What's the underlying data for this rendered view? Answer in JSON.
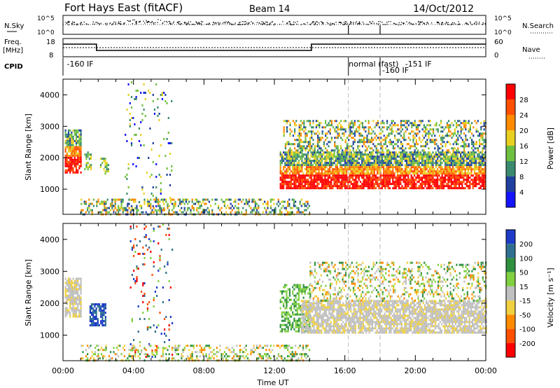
{
  "header": {
    "station": "Fort Hays East (fitACF)",
    "beam": "Beam 14",
    "date": "14/Oct/2012"
  },
  "summary_panels": {
    "nsky_label": "N.Sky",
    "nsky_ticks": [
      "10^5",
      "10^0"
    ],
    "nsearch_label": "N.Search",
    "nsearch_ticks": [
      "10^5",
      "10^0"
    ],
    "freq_label_line1": "Freq.",
    "freq_label_line2": "[MHz]",
    "freq_ticks": [
      "18",
      "8"
    ],
    "nave_label": "Nave",
    "nave_ticks": [
      "60",
      "0"
    ],
    "cpid_label": "CPID",
    "cpid_annotations": [
      {
        "text": "-160 IF",
        "hour": 0.1
      },
      {
        "text": "normal (fast)",
        "hour": 16.1
      },
      {
        "text": "-160 IF",
        "hour": 18.0
      },
      {
        "text": "-151 IF",
        "hour": 19.3
      }
    ],
    "mode_change_hours": [
      16.2,
      18.0
    ]
  },
  "chart_data": [
    {
      "type": "heatmap",
      "name": "Power panel",
      "ylabel": "Slant Range [km]",
      "xlabel": "Time UT",
      "x_ticks": [
        "00:00",
        "04:00",
        "08:00",
        "12:00",
        "16:00",
        "20:00",
        "00:00"
      ],
      "x_range_hours": [
        0,
        24
      ],
      "y_ticks": [
        1000,
        2000,
        3000,
        4000
      ],
      "ylim": [
        200,
        4500
      ],
      "colorbar_label": "Power [dB]",
      "colorbar_ticks": [
        "4",
        "8",
        "12",
        "16",
        "20",
        "24",
        "28"
      ],
      "colorbar_colors": [
        "#1414ff",
        "#2040a0",
        "#3a8a70",
        "#70c040",
        "#e8d020",
        "#ff8a00",
        "#ff5000",
        "#ff0000"
      ],
      "echo_regions": [
        {
          "hours": [
            0.1,
            1.0
          ],
          "range_km": [
            1500,
            2900
          ],
          "level": "strong"
        },
        {
          "hours": [
            1.2,
            1.6
          ],
          "range_km": [
            1600,
            2200
          ],
          "level": "moderate"
        },
        {
          "hours": [
            2.1,
            2.6
          ],
          "range_km": [
            1500,
            2000
          ],
          "level": "moderate"
        },
        {
          "hours": [
            3.5,
            6.2
          ],
          "range_km": [
            300,
            4500
          ],
          "level": "noise"
        },
        {
          "hours": [
            1.0,
            14.0
          ],
          "range_km": [
            200,
            700
          ],
          "level": "weak"
        },
        {
          "hours": [
            12.3,
            24.0
          ],
          "range_km": [
            1000,
            2200
          ],
          "level": "strong"
        },
        {
          "hours": [
            12.5,
            24.0
          ],
          "range_km": [
            2200,
            3200
          ],
          "level": "weak"
        }
      ]
    },
    {
      "type": "heatmap",
      "name": "Velocity panel",
      "ylabel": "Slant Range [km]",
      "xlabel": "Time UT",
      "x_ticks": [
        "00:00",
        "04:00",
        "08:00",
        "12:00",
        "16:00",
        "20:00",
        "00:00"
      ],
      "x_range_hours": [
        0,
        24
      ],
      "y_ticks": [
        1000,
        2000,
        3000,
        4000
      ],
      "ylim": [
        200,
        4500
      ],
      "colorbar_label": "Velocity [m s⁻¹]",
      "colorbar_ticks": [
        "200",
        "100",
        "50",
        "15",
        "-15",
        "-50",
        "-100",
        "-200"
      ],
      "colorbar_colors": [
        "#1e3cc8",
        "#2f7090",
        "#2f9040",
        "#80d040",
        "#c0c0c0",
        "#f0d040",
        "#ff8a00",
        "#ff5000",
        "#ff0000"
      ],
      "echo_regions": [
        {
          "hours": [
            0.1,
            1.0
          ],
          "range_km": [
            1600,
            2800
          ],
          "level": "ground"
        },
        {
          "hours": [
            1.5,
            2.4
          ],
          "range_km": [
            1300,
            2000
          ],
          "level": "positive"
        },
        {
          "hours": [
            3.8,
            6.2
          ],
          "range_km": [
            300,
            4500
          ],
          "level": "noise"
        },
        {
          "hours": [
            1.0,
            14.0
          ],
          "range_km": [
            200,
            700
          ],
          "level": "mixed"
        },
        {
          "hours": [
            12.3,
            14.0
          ],
          "range_km": [
            1100,
            2600
          ],
          "level": "low-positive"
        },
        {
          "hours": [
            13.5,
            24.0
          ],
          "range_km": [
            1100,
            2100
          ],
          "level": "ground"
        },
        {
          "hours": [
            14.0,
            24.0
          ],
          "range_km": [
            2100,
            3300
          ],
          "level": "mixed"
        }
      ]
    }
  ]
}
